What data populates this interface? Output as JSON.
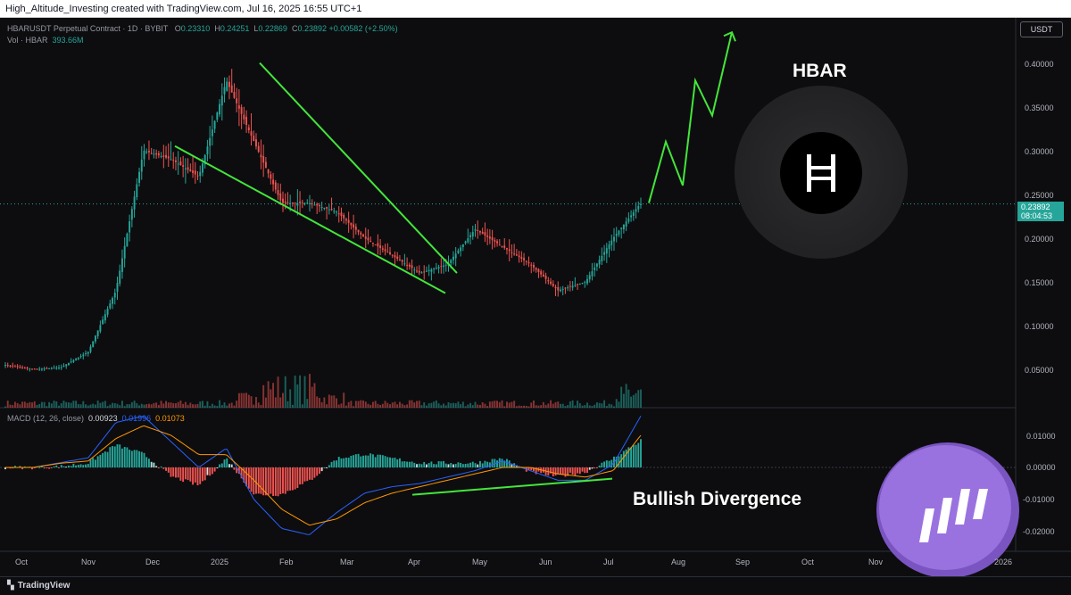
{
  "header": {
    "credit": "High_Altitude_Investing created with TradingView.com, Jul 16, 2025 16:55 UTC+1"
  },
  "legend": {
    "symbol": "HBARUSDT Perpetual Contract · 1D · BYBIT",
    "o_label": "O",
    "o": "0.23310",
    "h_label": "H",
    "h": "0.24251",
    "l_label": "L",
    "l": "0.22869",
    "c_label": "C",
    "c": "0.23892",
    "change": "+0.00582 (+2.50%)",
    "vol_label": "Vol · HBAR",
    "vol": "393.66M"
  },
  "macd_legend": {
    "label": "MACD (12, 26, close)",
    "hist": "0.00923",
    "macd": "0.01996",
    "signal": "0.01073"
  },
  "currency": "USDT",
  "last_price": "0.23892",
  "countdown": "08:04:53",
  "price_axis": [
    "0.40000",
    "0.35000",
    "0.30000",
    "0.25000",
    "0.20000",
    "0.15000",
    "0.10000",
    "0.05000"
  ],
  "macd_axis": [
    "0.01000",
    "0.00000",
    "-0.01000",
    "-0.02000"
  ],
  "time_axis": [
    "Oct",
    "Nov",
    "Dec",
    "2025",
    "Feb",
    "Mar",
    "Apr",
    "May",
    "Jun",
    "Jul",
    "Aug",
    "Sep",
    "Oct",
    "Nov",
    "2026"
  ],
  "annotations": {
    "title": "HBAR",
    "divergence": "Bullish Divergence"
  },
  "brand": "TradingView",
  "colors": {
    "up": "#26a69a",
    "down": "#ef5350",
    "annotation": "#43e63a",
    "macd": "#2962ff",
    "signal": "#ff9800",
    "background": "#0d0d0f"
  },
  "chart_data": [
    {
      "type": "candlestick",
      "title": "HBARUSDT Perpetual Contract · 1D · BYBIT",
      "ylim": [
        0.0,
        0.42
      ],
      "x": [
        "Oct",
        "Nov",
        "Dec",
        "2025",
        "Feb",
        "Mar",
        "Apr",
        "May",
        "Jun",
        "Jul"
      ],
      "close_path": [
        0.055,
        0.05,
        0.052,
        0.07,
        0.14,
        0.3,
        0.29,
        0.27,
        0.38,
        0.31,
        0.24,
        0.24,
        0.23,
        0.2,
        0.18,
        0.16,
        0.17,
        0.21,
        0.19,
        0.17,
        0.14,
        0.15,
        0.2,
        0.24
      ],
      "last": 0.23892,
      "falling_wedge": {
        "upper": [
          0.4,
          0.16
        ],
        "lower": [
          0.305,
          0.137
        ]
      },
      "projection": [
        0.24,
        0.31,
        0.26,
        0.38,
        0.34,
        0.435
      ]
    },
    {
      "type": "bar",
      "name": "Vol · HBAR",
      "last": "393.66M"
    },
    {
      "type": "line",
      "name": "MACD (12, 26, close)",
      "ylim": [
        -0.024,
        0.015
      ],
      "series": [
        {
          "name": "MACD",
          "values": [
            0.0,
            0.0,
            0.0015,
            0.003,
            0.014,
            0.016,
            0.008,
            0.0,
            0.006,
            -0.01,
            -0.019,
            -0.021,
            -0.014,
            -0.008,
            -0.006,
            -0.005,
            -0.003,
            -0.001,
            0.002,
            -0.001,
            -0.004,
            -0.004,
            0.001,
            0.016
          ]
        },
        {
          "name": "Signal",
          "values": [
            0.0,
            0.0,
            0.0013,
            0.002,
            0.009,
            0.013,
            0.01,
            0.004,
            0.004,
            -0.004,
            -0.013,
            -0.018,
            -0.016,
            -0.011,
            -0.008,
            -0.006,
            -0.004,
            -0.002,
            0.0,
            0.0,
            -0.002,
            -0.003,
            -0.001,
            0.01
          ]
        }
      ],
      "hist_last": 0.00923
    }
  ]
}
